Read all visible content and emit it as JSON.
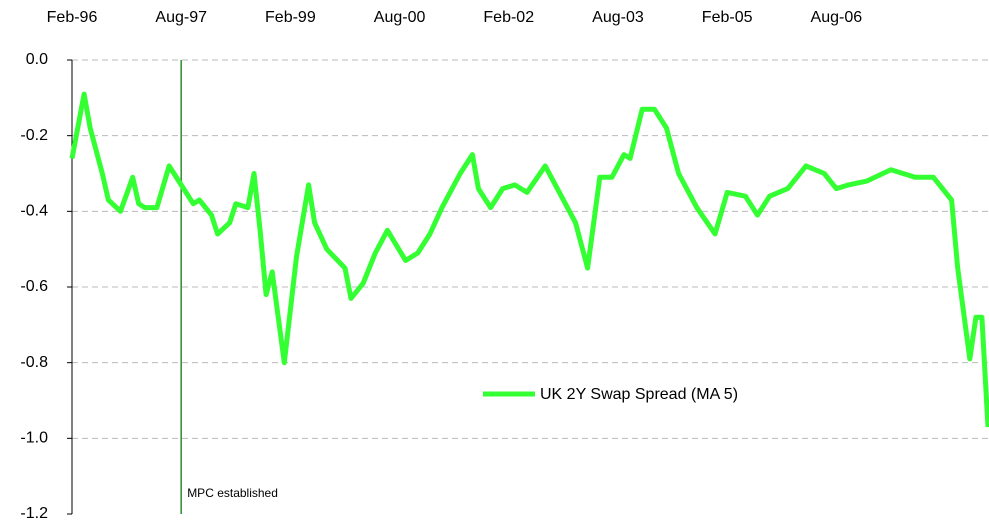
{
  "chart_data": {
    "type": "line",
    "x": [
      "1996-02",
      "1996-04",
      "1996-05",
      "1996-07",
      "1996-08",
      "1996-10",
      "1996-12",
      "1997-01",
      "1997-02",
      "1997-04",
      "1997-06",
      "1997-08",
      "1997-10",
      "1997-11",
      "1998-01",
      "1998-02",
      "1998-04",
      "1998-05",
      "1998-07",
      "1998-08",
      "1998-09",
      "1998-10",
      "1998-11",
      "1999-01",
      "1999-02",
      "1999-03",
      "1999-05",
      "1999-06",
      "1999-08",
      "1999-11",
      "1999-12",
      "2000-02",
      "2000-04",
      "2000-06",
      "2000-09",
      "2000-11",
      "2001-01",
      "2001-03",
      "2001-06",
      "2001-08",
      "2001-09",
      "2001-11",
      "2002-01",
      "2002-03",
      "2002-05",
      "2002-08",
      "2002-10",
      "2003-01",
      "2003-03",
      "2003-05",
      "2003-07",
      "2003-09",
      "2003-10",
      "2003-12",
      "2004-02",
      "2004-04",
      "2004-06",
      "2004-09",
      "2004-12",
      "2005-02",
      "2005-05",
      "2005-07",
      "2005-09",
      "2005-12",
      "2006-03",
      "2006-06",
      "2006-08",
      "2006-10",
      "2007-01",
      "2007-05",
      "2007-07",
      "2007-09",
      "2007-12",
      "2008-03",
      "2008-04",
      "2008-06",
      "2008-07",
      "2008-08",
      "2008-09"
    ],
    "series": [
      {
        "name": "UK 2Y Swap Spread (MA 5)",
        "color": "#33ff33",
        "values": [
          -0.26,
          -0.09,
          -0.18,
          -0.3,
          -0.37,
          -0.4,
          -0.31,
          -0.38,
          -0.39,
          -0.39,
          -0.28,
          -0.33,
          -0.38,
          -0.37,
          -0.41,
          -0.46,
          -0.43,
          -0.38,
          -0.39,
          -0.3,
          -0.45,
          -0.62,
          -0.56,
          -0.8,
          -0.66,
          -0.52,
          -0.33,
          -0.43,
          -0.5,
          -0.55,
          -0.63,
          -0.59,
          -0.51,
          -0.45,
          -0.53,
          -0.51,
          -0.46,
          -0.39,
          -0.3,
          -0.25,
          -0.34,
          -0.39,
          -0.34,
          -0.33,
          -0.35,
          -0.28,
          -0.34,
          -0.43,
          -0.55,
          -0.31,
          -0.31,
          -0.25,
          -0.26,
          -0.13,
          -0.13,
          -0.18,
          -0.3,
          -0.39,
          -0.46,
          -0.35,
          -0.36,
          -0.41,
          -0.36,
          -0.34,
          -0.28,
          -0.3,
          -0.34,
          -0.33,
          -0.32,
          -0.29,
          -0.3,
          -0.31,
          -0.31,
          -0.37,
          -0.55,
          -0.79,
          -0.68,
          -0.68,
          -0.97
        ]
      }
    ],
    "xlim": [
      "1996-02",
      "2008-09"
    ],
    "xticks": [
      {
        "value": "1996-02",
        "label": "Feb-96"
      },
      {
        "value": "1997-08",
        "label": "Aug-97"
      },
      {
        "value": "1999-02",
        "label": "Feb-99"
      },
      {
        "value": "2000-08",
        "label": "Aug-00"
      },
      {
        "value": "2002-02",
        "label": "Feb-02"
      },
      {
        "value": "2003-08",
        "label": "Aug-03"
      },
      {
        "value": "2005-02",
        "label": "Feb-05"
      },
      {
        "value": "2006-08",
        "label": "Aug-06"
      }
    ],
    "ylim": [
      -1.2,
      0
    ],
    "yticks": [
      {
        "value": 0,
        "label": "0.0"
      },
      {
        "value": -0.2,
        "label": "-0.2"
      },
      {
        "value": -0.4,
        "label": "-0.4"
      },
      {
        "value": -0.6,
        "label": "-0.6"
      },
      {
        "value": -0.8,
        "label": "-0.8"
      },
      {
        "value": -1.0,
        "label": "-1.0"
      },
      {
        "value": -1.2,
        "label": "-1.2"
      }
    ],
    "grid": true,
    "vline": {
      "x": "1997-08",
      "label": "MPC established",
      "color": "#2e8b2e"
    }
  }
}
